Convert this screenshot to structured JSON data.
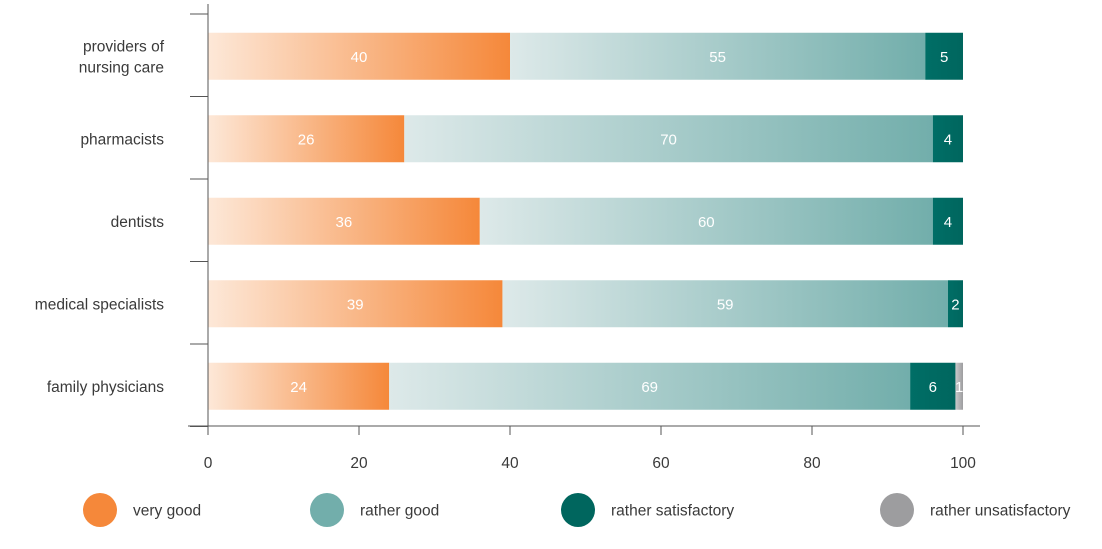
{
  "chart_data": {
    "type": "bar",
    "orientation": "horizontal",
    "stacked": true,
    "categories": [
      "providers of nursing care",
      "pharmacists",
      "dentists",
      "medical specialists",
      "family physicians"
    ],
    "category_lines": [
      [
        "providers of",
        "nursing care"
      ],
      [
        "pharmacists"
      ],
      [
        "dentists"
      ],
      [
        "medical specialists"
      ],
      [
        "family physicians"
      ]
    ],
    "series": [
      {
        "name": "very good",
        "color": "#f5883a",
        "values": [
          40,
          26,
          36,
          39,
          24
        ]
      },
      {
        "name": "rather good",
        "color": "#72aeab",
        "values": [
          55,
          70,
          60,
          59,
          69
        ]
      },
      {
        "name": "rather satisfactory",
        "color": "#00665e",
        "values": [
          5,
          4,
          4,
          2,
          6
        ]
      },
      {
        "name": "rather unsatisfactory",
        "color": "#9d9d9f",
        "values": [
          0,
          0,
          0,
          0,
          1
        ]
      }
    ],
    "x_ticks": [
      "0",
      "20",
      "40",
      "60",
      "80",
      "100"
    ],
    "xlim": [
      0,
      100
    ],
    "grid": false,
    "legend_position": "bottom"
  }
}
